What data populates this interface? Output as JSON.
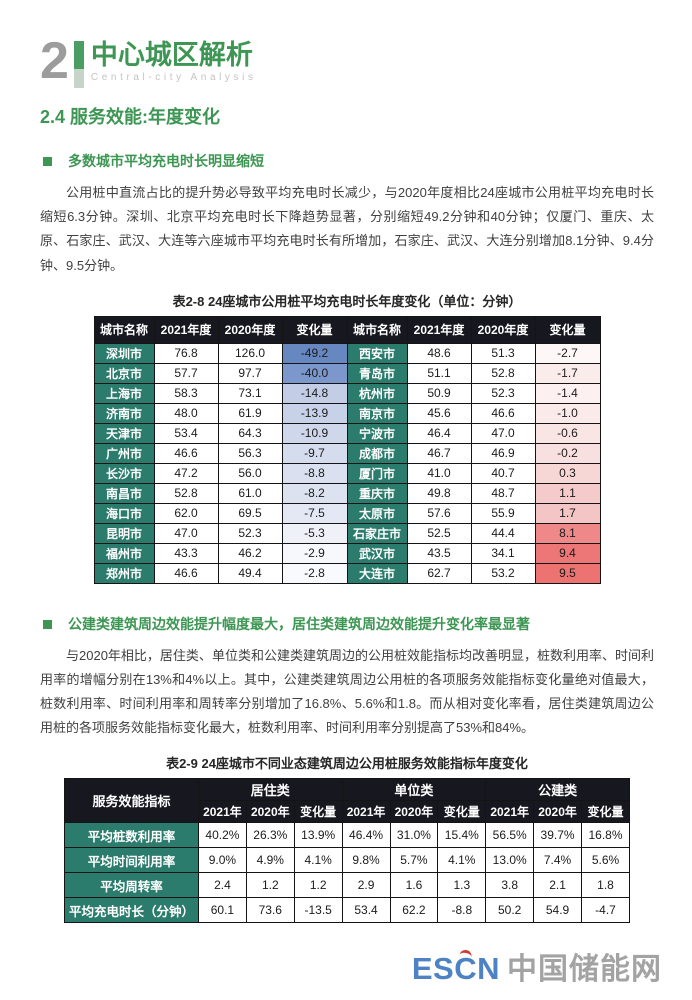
{
  "colors": {
    "accent_green": "#3e9654",
    "teal_cell": "#2c7c6e",
    "table_header_bg": "#17171f",
    "chapter_number_gray": "#9c9c9c",
    "logo_blue": "#4d82c4",
    "logo_gray": "#a3a3a3",
    "logo_red": "#d23b2f"
  },
  "header": {
    "chapter_number": "2",
    "chapter_title_cn": "中心城区解析",
    "chapter_title_en": "Central-city Analysis",
    "section_title": "2.4 服务效能:年度变化"
  },
  "section1": {
    "heading": "多数城市平均充电时长明显缩短",
    "paragraph": "公用桩中直流占比的提升势必导致平均充电时长减少，与2020年度相比24座城市公用桩平均充电时长缩短6.3分钟。深圳、北京平均充电时长下降趋势显著，分别缩短49.2分钟和40分钟；仅厦门、重庆、太原、石家庄、武汉、大连等六座城市平均充电时长有所增加，石家庄、武汉、大连分别增加8.1分钟、9.4分钟、9.5分钟。"
  },
  "table1": {
    "title": "表2-8 24座城市公用桩平均充电时长年度变化（单位：分钟）",
    "headers": [
      "城市名称",
      "2021年度",
      "2020年度",
      "变化量"
    ],
    "rows": [
      {
        "left": {
          "city": "深圳市",
          "y2021": "76.8",
          "y2020": "126.0",
          "delta": "-49.2",
          "delta_bg": "#6787c1"
        },
        "right": {
          "city": "西安市",
          "y2021": "48.6",
          "y2020": "51.3",
          "delta": "-2.7",
          "delta_bg": "#fdf7f7"
        }
      },
      {
        "left": {
          "city": "北京市",
          "y2021": "57.7",
          "y2020": "97.7",
          "delta": "-40.0",
          "delta_bg": "#7b97cb"
        },
        "right": {
          "city": "青岛市",
          "y2021": "51.1",
          "y2020": "52.8",
          "delta": "-1.7",
          "delta_bg": "#fbecec"
        }
      },
      {
        "left": {
          "city": "上海市",
          "y2021": "58.3",
          "y2020": "73.1",
          "delta": "-14.8",
          "delta_bg": "#c3cee6"
        },
        "right": {
          "city": "杭州市",
          "y2021": "50.9",
          "y2020": "52.3",
          "delta": "-1.4",
          "delta_bg": "#fcf0f0"
        }
      },
      {
        "left": {
          "city": "济南市",
          "y2021": "48.0",
          "y2020": "61.9",
          "delta": "-13.9",
          "delta_bg": "#c7d1e8"
        },
        "right": {
          "city": "南京市",
          "y2021": "45.6",
          "y2020": "46.6",
          "delta": "-1.0",
          "delta_bg": "#fbeaea"
        }
      },
      {
        "left": {
          "city": "天津市",
          "y2021": "53.4",
          "y2020": "64.3",
          "delta": "-10.9",
          "delta_bg": "#cfd7eb"
        },
        "right": {
          "city": "宁波市",
          "y2021": "46.4",
          "y2020": "47.0",
          "delta": "-0.6",
          "delta_bg": "#fae5e5"
        }
      },
      {
        "left": {
          "city": "广州市",
          "y2021": "46.6",
          "y2020": "56.3",
          "delta": "-9.7",
          "delta_bg": "#d5dcee"
        },
        "right": {
          "city": "成都市",
          "y2021": "46.7",
          "y2020": "46.9",
          "delta": "-0.2",
          "delta_bg": "#f9e0e0"
        }
      },
      {
        "left": {
          "city": "长沙市",
          "y2021": "47.2",
          "y2020": "56.0",
          "delta": "-8.8",
          "delta_bg": "#dae0f0"
        },
        "right": {
          "city": "厦门市",
          "y2021": "41.0",
          "y2020": "40.7",
          "delta": "0.3",
          "delta_bg": "#f7d6d6"
        }
      },
      {
        "left": {
          "city": "南昌市",
          "y2021": "52.8",
          "y2020": "61.0",
          "delta": "-8.2",
          "delta_bg": "#dde2f1"
        },
        "right": {
          "city": "重庆市",
          "y2021": "49.8",
          "y2020": "48.7",
          "delta": "1.1",
          "delta_bg": "#f5caca"
        }
      },
      {
        "left": {
          "city": "海口市",
          "y2021": "62.0",
          "y2020": "69.5",
          "delta": "-7.5",
          "delta_bg": "#e4e8f4"
        },
        "right": {
          "city": "太原市",
          "y2021": "57.6",
          "y2020": "55.9",
          "delta": "1.7",
          "delta_bg": "#f4c5c5"
        }
      },
      {
        "left": {
          "city": "昆明市",
          "y2021": "47.0",
          "y2020": "52.3",
          "delta": "-5.3",
          "delta_bg": "#eef1f8"
        },
        "right": {
          "city": "石家庄市",
          "y2021": "52.5",
          "y2020": "44.4",
          "delta": "8.1",
          "delta_bg": "#ef8989"
        }
      },
      {
        "left": {
          "city": "福州市",
          "y2021": "43.3",
          "y2020": "46.2",
          "delta": "-2.9",
          "delta_bg": "#f7f8fc"
        },
        "right": {
          "city": "武汉市",
          "y2021": "43.5",
          "y2020": "34.1",
          "delta": "9.4",
          "delta_bg": "#ed7676"
        }
      },
      {
        "left": {
          "city": "郑州市",
          "y2021": "46.6",
          "y2020": "49.4",
          "delta": "-2.8",
          "delta_bg": "#f9fafd"
        },
        "right": {
          "city": "大连市",
          "y2021": "62.7",
          "y2020": "53.2",
          "delta": "9.5",
          "delta_bg": "#ed7272"
        }
      }
    ]
  },
  "section2": {
    "heading": "公建类建筑周边效能提升幅度最大，居住类建筑周边效能提升变化率最显著",
    "paragraph": "与2020年相比，居住类、单位类和公建类建筑周边的公用桩效能指标均改善明显，桩数利用率、时间利用率的增幅分别在13%和4%以上。其中，公建类建筑周边公用桩的各项服务效能指标变化量绝对值最大，桩数利用率、时间利用率和周转率分别增加了16.8%、5.6%和1.8。而从相对变化率看，居住类建筑周边公用桩的各项服务效能指标变化最大，桩数利用率、时间利用率分别提高了53%和84%。"
  },
  "table2": {
    "title": "表2-9 24座城市不同业态建筑周边公用桩服务效能指标年度变化",
    "corner_header": "服务效能指标",
    "groups": [
      "居住类",
      "单位类",
      "公建类"
    ],
    "sub_headers": [
      "2021年",
      "2020年",
      "变化量"
    ],
    "rows": [
      {
        "label": "平均桩数利用率",
        "values": [
          "40.2%",
          "26.3%",
          "13.9%",
          "46.4%",
          "31.0%",
          "15.4%",
          "56.5%",
          "39.7%",
          "16.8%"
        ]
      },
      {
        "label": "平均时间利用率",
        "values": [
          "9.0%",
          "4.9%",
          "4.1%",
          "9.8%",
          "5.7%",
          "4.1%",
          "13.0%",
          "7.4%",
          "5.6%"
        ]
      },
      {
        "label": "平均周转率",
        "values": [
          "2.4",
          "1.2",
          "1.2",
          "2.9",
          "1.6",
          "1.3",
          "3.8",
          "2.1",
          "1.8"
        ]
      },
      {
        "label": "平均充电时长（分钟）",
        "values": [
          "60.1",
          "73.6",
          "-13.5",
          "53.4",
          "62.2",
          "-8.8",
          "50.2",
          "54.9",
          "-4.7"
        ]
      }
    ]
  },
  "footer": {
    "logo_en": "ESCN",
    "logo_cn": "中国储能网"
  }
}
